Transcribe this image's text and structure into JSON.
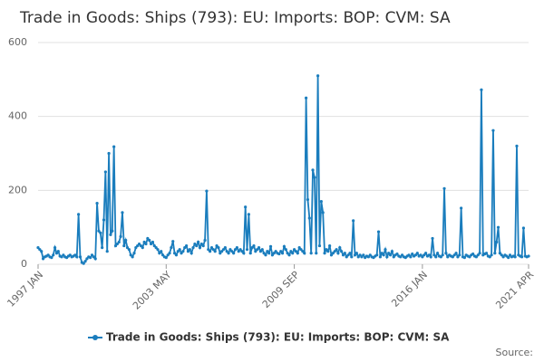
{
  "chart_data": {
    "type": "line",
    "title": "Trade in Goods: Ships (793): EU: Imports: BOP: CVM: SA",
    "source": "Source:",
    "categories": [
      "1997 JAN",
      null,
      null,
      null,
      null,
      null,
      null,
      null,
      null,
      null,
      null,
      null,
      null,
      null,
      null,
      null,
      null,
      null,
      null,
      null,
      null,
      null,
      null,
      null,
      null,
      null,
      null,
      null,
      null,
      null,
      null,
      null,
      null,
      null,
      null,
      null,
      null,
      null,
      null,
      null,
      null,
      null,
      null,
      null,
      null,
      null,
      null,
      null,
      null,
      null,
      null,
      null,
      null,
      null,
      null,
      null,
      null,
      null,
      null,
      null,
      null,
      null,
      null,
      null,
      null,
      null,
      null,
      null,
      null,
      null,
      null,
      null,
      null,
      null,
      null,
      null,
      "2003 MAY",
      null,
      null,
      null,
      null,
      null,
      null,
      null,
      null,
      null,
      null,
      null,
      null,
      null,
      null,
      null,
      null,
      null,
      null,
      null,
      null,
      null,
      null,
      null,
      null,
      null,
      null,
      null,
      null,
      null,
      null,
      null,
      null,
      null,
      null,
      null,
      null,
      null,
      null,
      null,
      null,
      null,
      null,
      null,
      null,
      null,
      null,
      null,
      null,
      null,
      null,
      null,
      null,
      null,
      null,
      null,
      null,
      null,
      null,
      null,
      null,
      null,
      null,
      null,
      null,
      null,
      null,
      null,
      null,
      null,
      null,
      null,
      null,
      null,
      null,
      null,
      "2009 SEP",
      null,
      null,
      null,
      null,
      null,
      null,
      null,
      null,
      null,
      null,
      null,
      null,
      null,
      null,
      null,
      null,
      null,
      null,
      null,
      null,
      null,
      null,
      null,
      null,
      null,
      null,
      null,
      null,
      null,
      null,
      null,
      null,
      null,
      null,
      null,
      null,
      null,
      null,
      null,
      null,
      null,
      null,
      null,
      null,
      null,
      null,
      null,
      null,
      null,
      null,
      null,
      null,
      null,
      null,
      null,
      null,
      null,
      null,
      null,
      null,
      null,
      null,
      null,
      null,
      null,
      null,
      null,
      null,
      null,
      null,
      null,
      null,
      null,
      null,
      null,
      "2016 JAN",
      null,
      null,
      null,
      null,
      null,
      null,
      null,
      null,
      null,
      null,
      null,
      null,
      null,
      null,
      null,
      null,
      null,
      null,
      null,
      null,
      null,
      null,
      null,
      null,
      null,
      null,
      null,
      null,
      null,
      null,
      null,
      null,
      null,
      null,
      null,
      null,
      null,
      null,
      null,
      null,
      null,
      null,
      null,
      null,
      null,
      null,
      null,
      null,
      null,
      null,
      null,
      null,
      null,
      null,
      null,
      null,
      null,
      null,
      null,
      null,
      null,
      null,
      "2021 APR"
    ],
    "series": [
      {
        "name": "Trade in Goods: Ships (793): EU: Imports: BOP: CVM: SA",
        "color": "#1a7dbd",
        "values": [
          45,
          40,
          35,
          15,
          20,
          22,
          25,
          20,
          18,
          25,
          45,
          30,
          35,
          22,
          20,
          25,
          20,
          18,
          22,
          25,
          20,
          22,
          25,
          20,
          135,
          20,
          5,
          2,
          8,
          15,
          20,
          18,
          25,
          20,
          15,
          165,
          90,
          85,
          45,
          120,
          250,
          35,
          300,
          80,
          90,
          318,
          50,
          55,
          60,
          75,
          140,
          50,
          65,
          45,
          40,
          25,
          20,
          30,
          45,
          50,
          55,
          50,
          45,
          60,
          55,
          70,
          65,
          55,
          60,
          50,
          45,
          40,
          30,
          35,
          25,
          20,
          18,
          25,
          30,
          45,
          62,
          30,
          25,
          35,
          40,
          30,
          35,
          45,
          50,
          35,
          40,
          30,
          45,
          55,
          50,
          60,
          45,
          55,
          50,
          65,
          198,
          40,
          35,
          45,
          40,
          35,
          50,
          45,
          30,
          35,
          40,
          45,
          35,
          30,
          40,
          35,
          30,
          40,
          45,
          35,
          40,
          35,
          30,
          155,
          40,
          135,
          30,
          45,
          50,
          35,
          40,
          45,
          35,
          40,
          30,
          25,
          35,
          30,
          48,
          25,
          30,
          35,
          30,
          28,
          35,
          30,
          48,
          40,
          30,
          25,
          35,
          30,
          40,
          35,
          30,
          45,
          40,
          35,
          30,
          450,
          175,
          125,
          30,
          255,
          235,
          30,
          510,
          50,
          170,
          140,
          30,
          40,
          35,
          50,
          25,
          30,
          35,
          40,
          30,
          45,
          35,
          25,
          30,
          20,
          25,
          30,
          20,
          118,
          25,
          30,
          20,
          25,
          20,
          25,
          18,
          22,
          20,
          25,
          20,
          18,
          22,
          25,
          88,
          20,
          30,
          25,
          40,
          20,
          30,
          25,
          35,
          20,
          25,
          28,
          22,
          20,
          25,
          20,
          18,
          22,
          25,
          20,
          28,
          22,
          25,
          30,
          22,
          25,
          20,
          25,
          30,
          22,
          25,
          20,
          70,
          25,
          20,
          30,
          22,
          20,
          25,
          205,
          30,
          20,
          25,
          22,
          20,
          25,
          30,
          20,
          25,
          152,
          20,
          18,
          25,
          22,
          20,
          25,
          28,
          22,
          20,
          25,
          30,
          472,
          25,
          28,
          30,
          22,
          20,
          25,
          362,
          30,
          60,
          100,
          30,
          25,
          20,
          25,
          22,
          18,
          25,
          20,
          22,
          20,
          320,
          25,
          22,
          20,
          98,
          22,
          20,
          22
        ]
      }
    ],
    "ylim": [
      0,
      600
    ],
    "yticks": [
      0,
      200,
      400,
      600
    ],
    "grid": true
  }
}
